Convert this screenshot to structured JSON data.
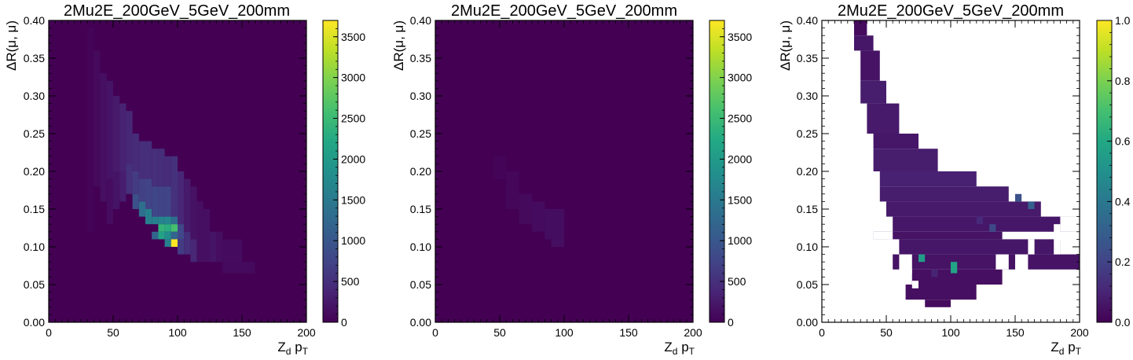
{
  "chart_data": [
    {
      "type": "heatmap",
      "title": "2Mu2E_200GeV_5GeV_200mm",
      "xlabel_main": "Z",
      "xlabel_sub1": "d",
      "xlabel_mid": " p",
      "xlabel_sub2": "T",
      "ylabel": "ΔR(μ, μ)",
      "xlim": [
        0,
        200
      ],
      "ylim": [
        0,
        0.4
      ],
      "xbins": 40,
      "ybins": 40,
      "x_ticks": [
        "0",
        "50",
        "100",
        "150",
        "200"
      ],
      "y_ticks": [
        "0.00",
        "0.05",
        "0.10",
        "0.15",
        "0.20",
        "0.25",
        "0.30",
        "0.35",
        "0.40"
      ],
      "zlim": [
        0,
        3700
      ],
      "colorbar_ticks": [
        {
          "v": 0,
          "label": "0"
        },
        {
          "v": 500,
          "label": "500"
        },
        {
          "v": 1000,
          "label": "1000"
        },
        {
          "v": 1500,
          "label": "1500"
        },
        {
          "v": 2000,
          "label": "2000"
        },
        {
          "v": 2500,
          "label": "2500"
        },
        {
          "v": 3000,
          "label": "3000"
        },
        {
          "v": 3500,
          "label": "3500"
        }
      ],
      "empty_bins_blank": false,
      "cells": [
        {
          "x": [
            30,
            35
          ],
          "y": [
            0.12,
            0.39
          ],
          "v": 40
        },
        {
          "x": [
            35,
            40
          ],
          "y": [
            0.18,
            0.36
          ],
          "v": 90
        },
        {
          "x": [
            40,
            45
          ],
          "y": [
            0.16,
            0.33
          ],
          "v": 150
        },
        {
          "x": [
            45,
            50
          ],
          "y": [
            0.19,
            0.32
          ],
          "v": 200
        },
        {
          "x": [
            45,
            50
          ],
          "y": [
            0.13,
            0.19
          ],
          "v": 120
        },
        {
          "x": [
            50,
            55
          ],
          "y": [
            0.2,
            0.3
          ],
          "v": 260
        },
        {
          "x": [
            50,
            55
          ],
          "y": [
            0.15,
            0.2
          ],
          "v": 200
        },
        {
          "x": [
            55,
            60
          ],
          "y": [
            0.2,
            0.29
          ],
          "v": 360
        },
        {
          "x": [
            55,
            60
          ],
          "y": [
            0.16,
            0.2
          ],
          "v": 300
        },
        {
          "x": [
            60,
            65
          ],
          "y": [
            0.21,
            0.28
          ],
          "v": 420
        },
        {
          "x": [
            60,
            65
          ],
          "y": [
            0.17,
            0.21
          ],
          "v": 520
        },
        {
          "x": [
            65,
            70
          ],
          "y": [
            0.2,
            0.25
          ],
          "v": 460
        },
        {
          "x": [
            65,
            70
          ],
          "y": [
            0.17,
            0.2
          ],
          "v": 650
        },
        {
          "x": [
            65,
            70
          ],
          "y": [
            0.15,
            0.17
          ],
          "v": 900
        },
        {
          "x": [
            70,
            75
          ],
          "y": [
            0.19,
            0.24
          ],
          "v": 480
        },
        {
          "x": [
            70,
            75
          ],
          "y": [
            0.16,
            0.19
          ],
          "v": 700
        },
        {
          "x": [
            70,
            75
          ],
          "y": [
            0.14,
            0.16
          ],
          "v": 1350
        },
        {
          "x": [
            75,
            80
          ],
          "y": [
            0.19,
            0.24
          ],
          "v": 480
        },
        {
          "x": [
            75,
            80
          ],
          "y": [
            0.15,
            0.19
          ],
          "v": 740
        },
        {
          "x": [
            75,
            80
          ],
          "y": [
            0.13,
            0.15
          ],
          "v": 1600
        },
        {
          "x": [
            80,
            85
          ],
          "y": [
            0.18,
            0.23
          ],
          "v": 500
        },
        {
          "x": [
            80,
            85
          ],
          "y": [
            0.14,
            0.18
          ],
          "v": 780
        },
        {
          "x": [
            80,
            85
          ],
          "y": [
            0.13,
            0.14
          ],
          "v": 1600
        },
        {
          "x": [
            80,
            85
          ],
          "y": [
            0.11,
            0.12
          ],
          "v": 1200
        },
        {
          "x": [
            85,
            90
          ],
          "y": [
            0.18,
            0.23
          ],
          "v": 480
        },
        {
          "x": [
            85,
            90
          ],
          "y": [
            0.14,
            0.18
          ],
          "v": 760
        },
        {
          "x": [
            85,
            90
          ],
          "y": [
            0.13,
            0.14
          ],
          "v": 1650
        },
        {
          "x": [
            85,
            90
          ],
          "y": [
            0.12,
            0.13
          ],
          "v": 2400
        },
        {
          "x": [
            85,
            90
          ],
          "y": [
            0.11,
            0.12
          ],
          "v": 2100
        },
        {
          "x": [
            90,
            95
          ],
          "y": [
            0.18,
            0.22
          ],
          "v": 460
        },
        {
          "x": [
            90,
            95
          ],
          "y": [
            0.14,
            0.18
          ],
          "v": 760
        },
        {
          "x": [
            90,
            95
          ],
          "y": [
            0.13,
            0.14
          ],
          "v": 1700
        },
        {
          "x": [
            90,
            95
          ],
          "y": [
            0.12,
            0.13
          ],
          "v": 2300
        },
        {
          "x": [
            90,
            95
          ],
          "y": [
            0.11,
            0.12
          ],
          "v": 1800
        },
        {
          "x": [
            90,
            95
          ],
          "y": [
            0.1,
            0.11
          ],
          "v": 1600
        },
        {
          "x": [
            95,
            100
          ],
          "y": [
            0.14,
            0.22
          ],
          "v": 520
        },
        {
          "x": [
            95,
            100
          ],
          "y": [
            0.13,
            0.14
          ],
          "v": 1300
        },
        {
          "x": [
            95,
            100
          ],
          "y": [
            0.12,
            0.13
          ],
          "v": 2600
        },
        {
          "x": [
            95,
            100
          ],
          "y": [
            0.11,
            0.12
          ],
          "v": 1200
        },
        {
          "x": [
            95,
            100
          ],
          "y": [
            0.1,
            0.11
          ],
          "v": 3700
        },
        {
          "x": [
            100,
            105
          ],
          "y": [
            0.13,
            0.2
          ],
          "v": 400
        },
        {
          "x": [
            100,
            105
          ],
          "y": [
            0.11,
            0.13
          ],
          "v": 800
        },
        {
          "x": [
            100,
            105
          ],
          "y": [
            0.09,
            0.11
          ],
          "v": 650
        },
        {
          "x": [
            105,
            110
          ],
          "y": [
            0.12,
            0.19
          ],
          "v": 260
        },
        {
          "x": [
            105,
            110
          ],
          "y": [
            0.09,
            0.12
          ],
          "v": 500
        },
        {
          "x": [
            110,
            115
          ],
          "y": [
            0.11,
            0.18
          ],
          "v": 180
        },
        {
          "x": [
            110,
            115
          ],
          "y": [
            0.08,
            0.11
          ],
          "v": 400
        },
        {
          "x": [
            115,
            120
          ],
          "y": [
            0.08,
            0.16
          ],
          "v": 150
        },
        {
          "x": [
            120,
            125
          ],
          "y": [
            0.08,
            0.15
          ],
          "v": 150
        },
        {
          "x": [
            125,
            130
          ],
          "y": [
            0.08,
            0.12
          ],
          "v": 200
        },
        {
          "x": [
            130,
            135
          ],
          "y": [
            0.08,
            0.12
          ],
          "v": 140
        },
        {
          "x": [
            135,
            150
          ],
          "y": [
            0.07,
            0.11
          ],
          "v": 110
        },
        {
          "x": [
            135,
            160
          ],
          "y": [
            0.065,
            0.08
          ],
          "v": 100
        }
      ]
    },
    {
      "type": "heatmap",
      "title": "2Mu2E_200GeV_5GeV_200mm",
      "xlabel_main": "Z",
      "xlabel_sub1": "d",
      "xlabel_mid": " p",
      "xlabel_sub2": "T",
      "ylabel": "ΔR(μ, μ)",
      "xlim": [
        0,
        200
      ],
      "ylim": [
        0,
        0.4
      ],
      "xbins": 40,
      "ybins": 40,
      "x_ticks": [
        "0",
        "50",
        "100",
        "150",
        "200"
      ],
      "y_ticks": [
        "0.00",
        "0.05",
        "0.10",
        "0.15",
        "0.20",
        "0.25",
        "0.30",
        "0.35",
        "0.40"
      ],
      "zlim": [
        0,
        3700
      ],
      "colorbar_ticks": [
        {
          "v": 0,
          "label": "0"
        },
        {
          "v": 500,
          "label": "500"
        },
        {
          "v": 1000,
          "label": "1000"
        },
        {
          "v": 1500,
          "label": "1500"
        },
        {
          "v": 2000,
          "label": "2000"
        },
        {
          "v": 2500,
          "label": "2500"
        },
        {
          "v": 3000,
          "label": "3000"
        },
        {
          "v": 3500,
          "label": "3500"
        }
      ],
      "empty_bins_blank": false,
      "cells": [
        {
          "x": [
            45,
            55
          ],
          "y": [
            0.19,
            0.22
          ],
          "v": 40
        },
        {
          "x": [
            55,
            65
          ],
          "y": [
            0.15,
            0.2
          ],
          "v": 60
        },
        {
          "x": [
            65,
            75
          ],
          "y": [
            0.13,
            0.17
          ],
          "v": 90
        },
        {
          "x": [
            75,
            85
          ],
          "y": [
            0.12,
            0.16
          ],
          "v": 110
        },
        {
          "x": [
            85,
            100
          ],
          "y": [
            0.11,
            0.15
          ],
          "v": 130
        },
        {
          "x": [
            90,
            100
          ],
          "y": [
            0.1,
            0.11
          ],
          "v": 140
        }
      ]
    },
    {
      "type": "heatmap",
      "title": "2Mu2E_200GeV_5GeV_200mm",
      "xlabel_main": "Z",
      "xlabel_sub1": "d",
      "xlabel_mid": " p",
      "xlabel_sub2": "T",
      "ylabel": "ΔR(μ, μ)",
      "xlim": [
        0,
        200
      ],
      "ylim": [
        0,
        0.4
      ],
      "xbins": 40,
      "ybins": 40,
      "x_ticks": [
        "0",
        "50",
        "100",
        "150",
        "200"
      ],
      "y_ticks": [
        "0.00",
        "0.05",
        "0.10",
        "0.15",
        "0.20",
        "0.25",
        "0.30",
        "0.35",
        "0.40"
      ],
      "zlim": [
        0,
        1.0
      ],
      "colorbar_ticks": [
        {
          "v": 0,
          "label": "0.0"
        },
        {
          "v": 0.2,
          "label": "0.2"
        },
        {
          "v": 0.4,
          "label": "0.4"
        },
        {
          "v": 0.6,
          "label": "0.6"
        },
        {
          "v": 0.8,
          "label": "0.8"
        },
        {
          "v": 1.0,
          "label": "1.0"
        }
      ],
      "empty_bins_blank": true,
      "cells": [
        {
          "x": [
            25,
            35
          ],
          "y": [
            0.38,
            0.4
          ],
          "v": 0.03
        },
        {
          "x": [
            25,
            40
          ],
          "y": [
            0.36,
            0.38
          ],
          "v": 0.06
        },
        {
          "x": [
            30,
            45
          ],
          "y": [
            0.32,
            0.36
          ],
          "v": 0.05
        },
        {
          "x": [
            30,
            50
          ],
          "y": [
            0.29,
            0.32
          ],
          "v": 0.08
        },
        {
          "x": [
            35,
            60
          ],
          "y": [
            0.25,
            0.29
          ],
          "v": 0.07
        },
        {
          "x": [
            40,
            75
          ],
          "y": [
            0.23,
            0.25
          ],
          "v": 0.06
        },
        {
          "x": [
            40,
            90
          ],
          "y": [
            0.2,
            0.23
          ],
          "v": 0.08
        },
        {
          "x": [
            45,
            120
          ],
          "y": [
            0.18,
            0.2
          ],
          "v": 0.09
        },
        {
          "x": [
            45,
            145
          ],
          "y": [
            0.16,
            0.18
          ],
          "v": 0.08
        },
        {
          "x": [
            50,
            170
          ],
          "y": [
            0.14,
            0.16
          ],
          "v": 0.07
        },
        {
          "x": [
            55,
            200
          ],
          "y": [
            0.12,
            0.14
          ],
          "v": 0.06
        },
        {
          "x": [
            40,
            140
          ],
          "y": [
            0.11,
            0.12
          ],
          "v": 0.05
        },
        {
          "x": [
            60,
            185
          ],
          "y": [
            0.09,
            0.11
          ],
          "v": 0.06
        },
        {
          "x": [
            55,
            200
          ],
          "y": [
            0.07,
            0.09
          ],
          "v": 0.05
        },
        {
          "x": [
            70,
            140
          ],
          "y": [
            0.05,
            0.07
          ],
          "v": 0.04
        },
        {
          "x": [
            65,
            120
          ],
          "y": [
            0.03,
            0.05
          ],
          "v": 0.04
        },
        {
          "x": [
            80,
            100
          ],
          "y": [
            0.02,
            0.03
          ],
          "v": 0.03
        },
        {
          "x": [
            150,
            155
          ],
          "y": [
            0.16,
            0.17
          ],
          "v": 0.25
        },
        {
          "x": [
            160,
            165
          ],
          "y": [
            0.15,
            0.16
          ],
          "v": 0.3
        },
        {
          "x": [
            130,
            135
          ],
          "y": [
            0.12,
            0.13
          ],
          "v": 0.22
        },
        {
          "x": [
            75,
            80
          ],
          "y": [
            0.08,
            0.09
          ],
          "v": 0.55
        },
        {
          "x": [
            100,
            105
          ],
          "y": [
            0.065,
            0.08
          ],
          "v": 0.58
        },
        {
          "x": [
            120,
            125
          ],
          "y": [
            0.13,
            0.14
          ],
          "v": 0.12
        },
        {
          "x": [
            85,
            90
          ],
          "y": [
            0.06,
            0.07
          ],
          "v": 0.1
        }
      ],
      "holes": [
        {
          "x": [
            40,
            55
          ],
          "y": [
            0.11,
            0.12
          ]
        },
        {
          "x": [
            60,
            70
          ],
          "y": [
            0.065,
            0.09
          ]
        },
        {
          "x": [
            70,
            75
          ],
          "y": [
            0.045,
            0.055
          ]
        },
        {
          "x": [
            135,
            145
          ],
          "y": [
            0.07,
            0.09
          ]
        },
        {
          "x": [
            150,
            160
          ],
          "y": [
            0.05,
            0.09
          ]
        },
        {
          "x": [
            160,
            165
          ],
          "y": [
            0.09,
            0.11
          ]
        },
        {
          "x": [
            180,
            185
          ],
          "y": [
            0.09,
            0.13
          ]
        },
        {
          "x": [
            185,
            200
          ],
          "y": [
            0.12,
            0.14
          ]
        },
        {
          "x": [
            120,
            125
          ],
          "y": [
            0.03,
            0.05
          ]
        },
        {
          "x": [
            125,
            140
          ],
          "y": [
            0.02,
            0.04
          ]
        }
      ]
    }
  ]
}
